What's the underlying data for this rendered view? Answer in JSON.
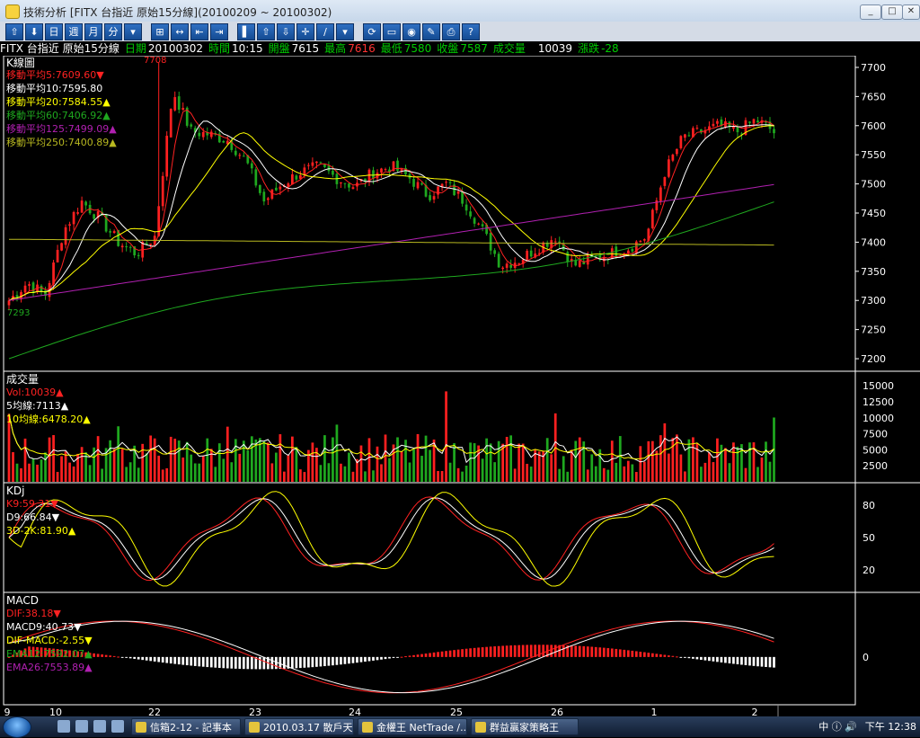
{
  "window": {
    "title": "技術分析 [FITX 台指近 原始15分線](20100209 ~ 20100302)",
    "min": "_",
    "max": "□",
    "close": "✕"
  },
  "toolbar": {
    "buttons": [
      "⇧",
      "⬇",
      "日",
      "週",
      "月",
      "分",
      "▾",
      "⊞",
      "↔",
      "⇤",
      "⇥",
      "▌",
      "⇧",
      "⇩",
      "✛",
      "∕",
      "▾",
      "⟳",
      "▭",
      "◉",
      "✎",
      "⎙",
      "?"
    ]
  },
  "infobar": {
    "symbol": "FITX 台指近 原始15分線",
    "date_label": "日期",
    "date": "20100302",
    "time_label": "時間",
    "time": "10:15",
    "open_label": "開盤",
    "open": "7615",
    "high_label": "最高",
    "high": "7616",
    "low_label": "最低",
    "low": "7580",
    "close_label": "收盤",
    "close": "7587",
    "vol_label": "成交量",
    "vol": "10039",
    "change_label": "漲跌",
    "change": "-28"
  },
  "panels": {
    "kline": {
      "title": "K線圖",
      "legend": [
        {
          "text": "移動平均5:7609.60▼",
          "color": "#ff2222"
        },
        {
          "text": "移動平均10:7595.80",
          "color": "#ffffff"
        },
        {
          "text": "移動平均20:7584.55▲",
          "color": "#ffff00"
        },
        {
          "text": "移動平均60:7406.92▲",
          "color": "#1fa81f"
        },
        {
          "text": "移動平均125:7499.09▲",
          "color": "#b020b0"
        },
        {
          "text": "移動平均250:7400.89▲",
          "color": "#b8b820"
        }
      ],
      "y_ticks": [
        "7700",
        "7650",
        "7600",
        "7550",
        "7500",
        "7450",
        "7400",
        "7350",
        "7300",
        "7250",
        "7200"
      ],
      "annotation_high": "7708",
      "annotation_low": "7293"
    },
    "volume": {
      "title": "成交量",
      "legend": [
        {
          "text": "Vol:10039▲",
          "color": "#ff2222"
        },
        {
          "text": "5均線:7113▲",
          "color": "#ffffff"
        },
        {
          "text": "10均線:6478.20▲",
          "color": "#ffff00"
        }
      ],
      "y_ticks": [
        "15000",
        "12500",
        "10000",
        "7500",
        "5000",
        "2500"
      ]
    },
    "kdj": {
      "title": "KDj",
      "legend": [
        {
          "text": "K9:59.31▼",
          "color": "#ff2222"
        },
        {
          "text": "D9:66.84▼",
          "color": "#ffffff"
        },
        {
          "text": "3D-2K:81.90▲",
          "color": "#ffff00"
        }
      ],
      "y_ticks": [
        "80",
        "50",
        "20"
      ]
    },
    "macd": {
      "title": "MACD",
      "legend": [
        {
          "text": "DIF:38.18▼",
          "color": "#ff2222"
        },
        {
          "text": "MACD9:40.73▼",
          "color": "#ffffff"
        },
        {
          "text": "DIF-MACD:-2.55▼",
          "color": "#ffff00"
        },
        {
          "text": "EMA12:7592.07▲",
          "color": "#1fa81f"
        },
        {
          "text": "EMA26:7553.89▲",
          "color": "#b020b0"
        }
      ],
      "y_ticks": [
        "0"
      ]
    }
  },
  "x_axis": {
    "labels": [
      "9",
      "10",
      "22",
      "23",
      "24",
      "25",
      "26",
      "1",
      "2"
    ]
  },
  "colors": {
    "up": "#ff2020",
    "down": "#1fa81f",
    "ma5": "#ff2222",
    "ma10": "#ffffff",
    "ma20": "#ffff00",
    "ma60": "#1fa81f",
    "ma125": "#b020b0",
    "ma250": "#b8b820"
  },
  "chart_data": [
    {
      "type": "candlestick",
      "ylim": [
        7180,
        7720
      ],
      "series_anchors": {
        "close": [
          7300,
          7330,
          7310,
          7420,
          7470,
          7440,
          7400,
          7380,
          7410,
          7660,
          7590,
          7585,
          7575,
          7540,
          7470,
          7500,
          7520,
          7530,
          7510,
          7495,
          7520,
          7530,
          7510,
          7480,
          7500,
          7470,
          7420,
          7360,
          7370,
          7390,
          7410,
          7360,
          7370,
          7380,
          7390,
          7410,
          7520,
          7580,
          7590,
          7600,
          7590,
          7610,
          7590
        ]
      }
    },
    {
      "type": "bar",
      "ylim": [
        0,
        16000
      ]
    },
    {
      "type": "line",
      "ylim": [
        0,
        100
      ]
    },
    {
      "type": "bar",
      "ylim": [
        -60,
        80
      ]
    }
  ],
  "taskbar": {
    "tasks": [
      "信箱2-12 - 記事本",
      "2010.03.17 散戶天...",
      "金權王 NetTrade /...",
      "群益贏家策略王"
    ],
    "tray": "中 ⓘ 🔊",
    "clock": "下午 12:38"
  }
}
